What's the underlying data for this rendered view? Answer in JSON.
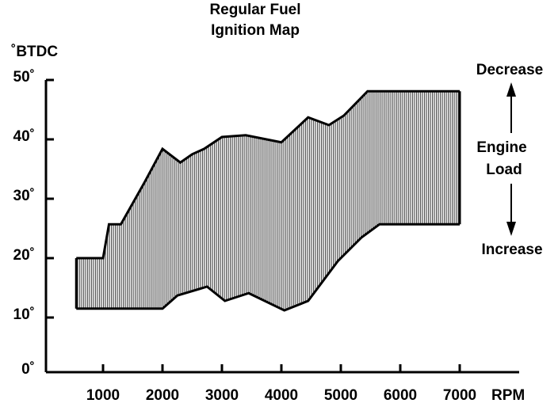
{
  "chart_data": {
    "type": "band",
    "title": [
      "Regular Fuel",
      "Ignition Map"
    ],
    "y_label": "˚BTDC",
    "x_label": "RPM",
    "annotations": [
      "Decrease",
      "Engine",
      "Load",
      "Increase"
    ],
    "upper": {
      "x": [
        550,
        1000,
        1100,
        1300,
        1700,
        2000,
        2300,
        2500,
        2700,
        3000,
        3400,
        4000,
        4450,
        4800,
        5050,
        5450,
        7000
      ],
      "values": [
        20,
        20,
        25.7,
        25.7,
        32.8,
        38.4,
        36.1,
        37.5,
        38.4,
        40.4,
        40.7,
        39.5,
        43.7,
        42.4,
        44,
        48.1,
        48.1
      ]
    },
    "lower": {
      "x": [
        550,
        2000,
        2250,
        2750,
        3050,
        3450,
        4050,
        4450,
        4950,
        5350,
        5650,
        7000
      ],
      "values": [
        11.5,
        11.5,
        13.7,
        15.2,
        12.8,
        14.1,
        11.2,
        12.8,
        19.5,
        23.5,
        25.7,
        25.7
      ]
    },
    "color": "#000000",
    "fill": "#777777",
    "xlim": [
      0,
      8000
    ],
    "xticks": [
      1000,
      2000,
      3000,
      4000,
      5000,
      6000,
      7000
    ],
    "ylim": [
      0,
      50
    ],
    "yticks": [
      {
        "value": 0,
        "label": "0˚"
      },
      {
        "value": 10,
        "label": "10˚"
      },
      {
        "value": 20,
        "label": "20˚"
      },
      {
        "value": 30,
        "label": "30˚"
      },
      {
        "value": 40,
        "label": "40˚"
      },
      {
        "value": 50,
        "label": "50˚"
      }
    ]
  }
}
